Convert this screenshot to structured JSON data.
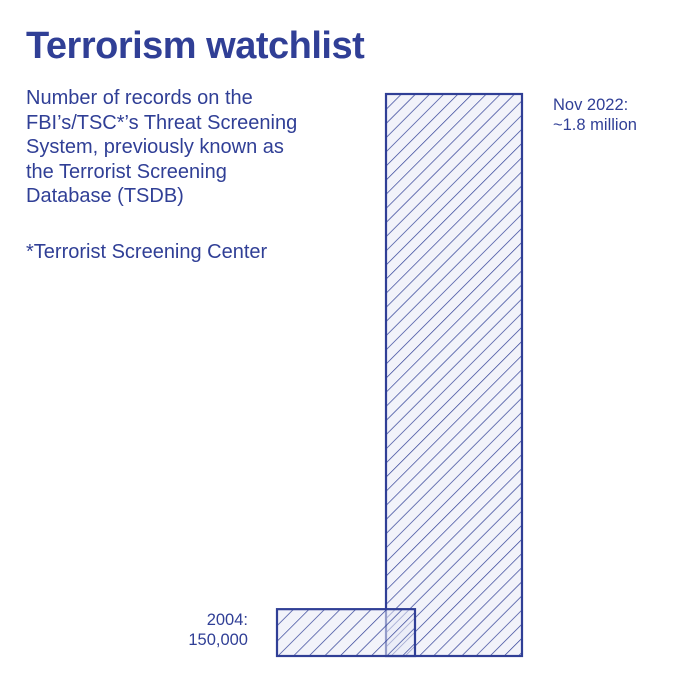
{
  "title": "Terrorism watchlist",
  "subtitle_lines": [
    "Number of records on the",
    "FBI’s/TSC*’s Threat Screening",
    "System, previously known as",
    "the Terrorist Screening",
    "Database (TSDB)"
  ],
  "footnote": "*Terrorist Screening Center",
  "colors": {
    "accent": "#303f96",
    "fill": "#e8eaf6",
    "background": "#ffffff"
  },
  "chart_data": {
    "type": "bar",
    "categories": [
      "2004",
      "Nov 2022"
    ],
    "values": [
      150000,
      1800000
    ],
    "data_labels": [
      [
        "2004:",
        "150,000"
      ],
      [
        "Nov 2022:",
        "~1.8 million"
      ]
    ],
    "pattern": "diagonal-hatch",
    "overlapping_bars": true,
    "axes_visible": false,
    "grid": false,
    "legend": "none"
  }
}
